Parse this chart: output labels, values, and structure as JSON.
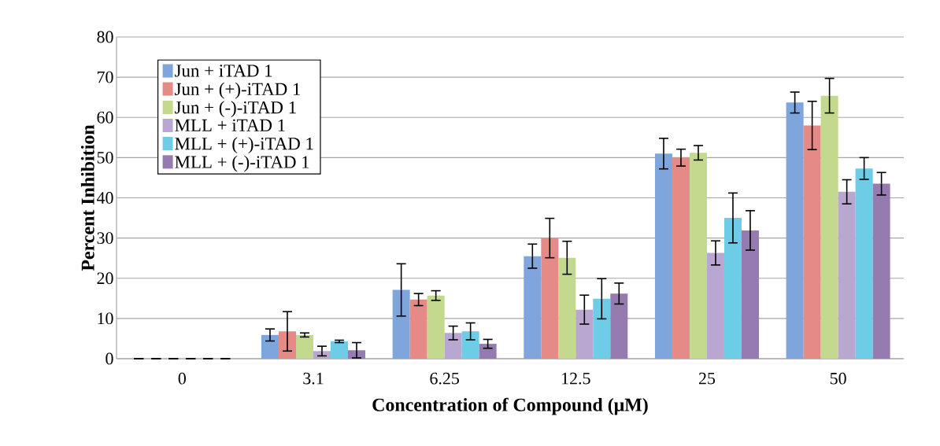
{
  "chart_data": {
    "type": "bar",
    "categories": [
      "0",
      "3.1",
      "6.25",
      "12.5",
      "25",
      "50"
    ],
    "xlabel": "Concentration of Compound (μM)",
    "ylabel": "Percent Inhibition",
    "ylim": [
      0,
      80
    ],
    "yticks": [
      0,
      10,
      20,
      30,
      40,
      50,
      60,
      70,
      80
    ],
    "grid": "y",
    "legend": "top left",
    "series": [
      {
        "name": "Jun + iTAD 1",
        "color": "#7ea6dc",
        "values": [
          0,
          5.9,
          17.1,
          25.5,
          51.0,
          63.7
        ],
        "errors": [
          null,
          1.5,
          6.5,
          3.0,
          3.8,
          2.6
        ]
      },
      {
        "name": "Jun + (+)-iTAD 1",
        "color": "#e58a86",
        "values": [
          0,
          6.8,
          14.7,
          30.0,
          50.0,
          58.0
        ],
        "errors": [
          null,
          4.9,
          1.5,
          4.9,
          2.1,
          6.0
        ]
      },
      {
        "name": "Jun + (-)-iTAD 1",
        "color": "#c2d98e",
        "values": [
          0,
          5.9,
          15.7,
          25.1,
          51.2,
          65.4
        ],
        "errors": [
          null,
          0.5,
          1.2,
          4.1,
          1.8,
          4.3
        ]
      },
      {
        "name": "MLL + iTAD 1",
        "color": "#b9a7d1",
        "values": [
          0,
          1.9,
          6.4,
          12.2,
          26.3,
          41.5
        ],
        "errors": [
          null,
          1.2,
          1.7,
          3.6,
          3.0,
          3.0
        ]
      },
      {
        "name": "MLL + (+)-iTAD 1",
        "color": "#6dcde6",
        "values": [
          0,
          4.3,
          6.8,
          14.9,
          35.0,
          47.3
        ],
        "errors": [
          null,
          0.3,
          2.1,
          5.0,
          6.2,
          2.7
        ]
      },
      {
        "name": "MLL + (-)-iTAD 1",
        "color": "#957bb0",
        "values": [
          0,
          2.1,
          3.7,
          16.2,
          31.9,
          43.5
        ],
        "errors": [
          null,
          1.9,
          1.1,
          2.6,
          4.9,
          2.8
        ]
      }
    ]
  }
}
